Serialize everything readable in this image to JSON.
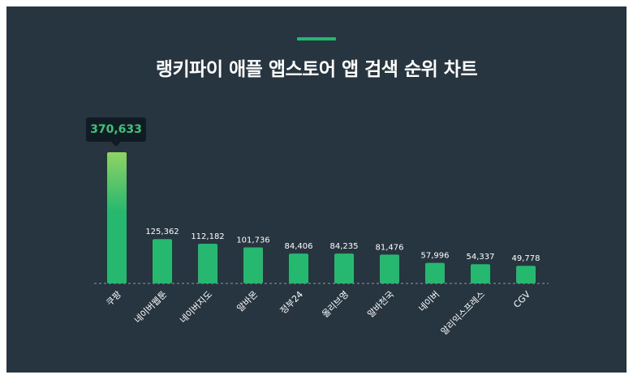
{
  "title": "랭키파이 애플 앱스토어 앱 검색 순위 차트",
  "colors": {
    "background": "#263540",
    "bar": "#27b86f",
    "bar_top_highlight": "#8fd363",
    "accent": "#22b86e",
    "tooltip_bg": "#101b24",
    "tooltip_text": "#3cc47a",
    "label_text": "#ffffff",
    "baseline": "#8a9aa3"
  },
  "tooltip": {
    "value_label": "370,633"
  },
  "chart_data": {
    "type": "bar",
    "title": "랭키파이 애플 앱스토어 앱 검색 순위 차트",
    "categories": [
      "쿠팡",
      "네이버웹툰",
      "네이버지도",
      "알바몬",
      "정부24",
      "올리브영",
      "알바천국",
      "네이버",
      "알리익스프레스",
      "CGV"
    ],
    "values": [
      370633,
      125362,
      112182,
      101736,
      84406,
      84235,
      81476,
      57996,
      54337,
      49778
    ],
    "value_labels": [
      "370,633",
      "125,362",
      "112,182",
      "101,736",
      "84,406",
      "84,235",
      "81,476",
      "57,996",
      "54,337",
      "49,778"
    ],
    "ylim": [
      0,
      400000
    ],
    "grid": false,
    "legend": "none",
    "highlighted_index": 0
  }
}
